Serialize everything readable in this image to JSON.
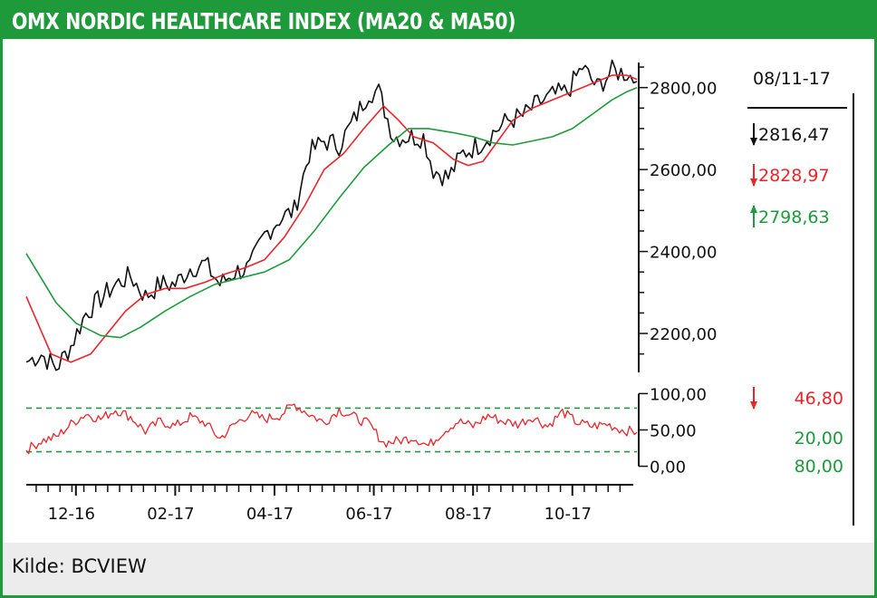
{
  "header": {
    "title": "OMX NORDIC HEALTHCARE INDEX (MA20 & MA50)"
  },
  "footer": {
    "source": "Kilde: BCVIEW"
  },
  "colors": {
    "brand_green": "#1e9a3a",
    "price": "#111111",
    "ma20": "#e8262c",
    "ma50": "#1f9a3c",
    "rsi": "#e8262c"
  },
  "side_panel": {
    "date": "08/11-17",
    "price_value": "2816,47",
    "ma20_value": "2828,97",
    "ma50_value": "2798,63",
    "rsi_value": "46,80",
    "rsi_low": "20,00",
    "rsi_high": "80,00",
    "price_arrow": "arrow-down-icon",
    "ma20_arrow": "arrow-down-icon",
    "ma50_arrow": "arrow-up-icon",
    "rsi_arrow": "arrow-down-icon"
  },
  "chart_data": {
    "type": "line",
    "title": "OMX NORDIC HEALTHCARE INDEX (MA20 & MA50)",
    "price_panel": {
      "y_ticks": [
        "2800,00",
        "2600,00",
        "2400,00",
        "2200,00"
      ],
      "y_tick_values": [
        2800,
        2600,
        2400,
        2200
      ],
      "ylim": [
        2105,
        2870
      ],
      "x_range_months": [
        0,
        12.3
      ],
      "series": [
        {
          "name": "price",
          "x": [
            0,
            0.3,
            0.6,
            0.9,
            1.2,
            1.5,
            1.8,
            2.1,
            2.4,
            2.7,
            3.0,
            3.3,
            3.6,
            3.9,
            4.2,
            4.5,
            4.8,
            5.1,
            5.4,
            5.7,
            6.0,
            6.3,
            6.6,
            6.9,
            7.1,
            7.4,
            7.7,
            8.0,
            8.2,
            8.5,
            8.8,
            9.1,
            9.4,
            9.7,
            10.0,
            10.3,
            10.6,
            10.9,
            11.2,
            11.5,
            11.8,
            12.1,
            12.3
          ],
          "y": [
            2130,
            2150,
            2115,
            2170,
            2250,
            2285,
            2320,
            2340,
            2290,
            2320,
            2320,
            2360,
            2370,
            2320,
            2350,
            2360,
            2440,
            2480,
            2500,
            2640,
            2670,
            2660,
            2720,
            2790,
            2790,
            2680,
            2680,
            2680,
            2600,
            2580,
            2640,
            2660,
            2690,
            2720,
            2730,
            2760,
            2780,
            2790,
            2850,
            2800,
            2840,
            2835,
            2815
          ]
        },
        {
          "name": "MA20",
          "x": [
            0,
            0.5,
            0.9,
            1.3,
            1.7,
            2.0,
            2.4,
            2.8,
            3.2,
            3.6,
            4.0,
            4.4,
            4.8,
            5.2,
            5.6,
            6.0,
            6.4,
            6.8,
            7.2,
            7.5,
            7.8,
            8.2,
            8.6,
            8.9,
            9.2,
            9.5,
            9.8,
            10.2,
            10.6,
            11.0,
            11.4,
            11.8,
            12.1,
            12.3
          ],
          "y": [
            2290,
            2150,
            2130,
            2150,
            2210,
            2255,
            2295,
            2310,
            2310,
            2325,
            2345,
            2360,
            2380,
            2435,
            2510,
            2600,
            2640,
            2700,
            2755,
            2720,
            2680,
            2665,
            2625,
            2610,
            2620,
            2670,
            2720,
            2750,
            2770,
            2790,
            2810,
            2830,
            2830,
            2820
          ]
        },
        {
          "name": "MA50",
          "x": [
            0,
            0.6,
            1.0,
            1.5,
            1.9,
            2.3,
            2.8,
            3.3,
            3.8,
            4.3,
            4.8,
            5.3,
            5.8,
            6.3,
            6.8,
            7.3,
            7.7,
            8.1,
            8.6,
            9.0,
            9.4,
            9.8,
            10.2,
            10.6,
            11.0,
            11.4,
            11.8,
            12.1,
            12.3
          ],
          "y": [
            2395,
            2275,
            2225,
            2195,
            2190,
            2215,
            2255,
            2290,
            2320,
            2335,
            2350,
            2380,
            2450,
            2530,
            2605,
            2660,
            2700,
            2700,
            2690,
            2680,
            2665,
            2660,
            2670,
            2680,
            2700,
            2735,
            2770,
            2790,
            2800
          ]
        }
      ]
    },
    "rsi_panel": {
      "y_ticks": [
        "100,00",
        "50,00",
        "0,00"
      ],
      "y_tick_values": [
        100,
        50,
        0
      ],
      "ylim": [
        -8,
        108
      ],
      "reference_lines": [
        80,
        20
      ],
      "series": [
        {
          "name": "RSI",
          "x": [
            0,
            0.3,
            0.6,
            0.9,
            1.2,
            1.5,
            1.8,
            2.1,
            2.4,
            2.7,
            3.0,
            3.3,
            3.6,
            3.9,
            4.2,
            4.5,
            4.8,
            5.1,
            5.4,
            5.7,
            6.0,
            6.3,
            6.6,
            6.9,
            7.2,
            7.5,
            7.8,
            8.1,
            8.4,
            8.7,
            9.0,
            9.3,
            9.6,
            9.9,
            10.2,
            10.5,
            10.8,
            11.1,
            11.4,
            11.7,
            12.0,
            12.3
          ],
          "y": [
            22,
            35,
            40,
            58,
            72,
            65,
            78,
            68,
            48,
            62,
            55,
            68,
            60,
            38,
            58,
            72,
            65,
            70,
            85,
            72,
            60,
            78,
            68,
            58,
            32,
            35,
            40,
            28,
            48,
            62,
            55,
            70,
            62,
            58,
            68,
            55,
            75,
            60,
            55,
            58,
            50,
            46.8
          ]
        }
      ]
    },
    "x_ticks": [
      "12-16",
      "02-17",
      "04-17",
      "06-17",
      "08-17",
      "10-17"
    ],
    "x_tick_values": [
      1.0,
      3.0,
      5.0,
      7.0,
      9.0,
      11.0
    ],
    "grid": false,
    "legend": "right"
  }
}
